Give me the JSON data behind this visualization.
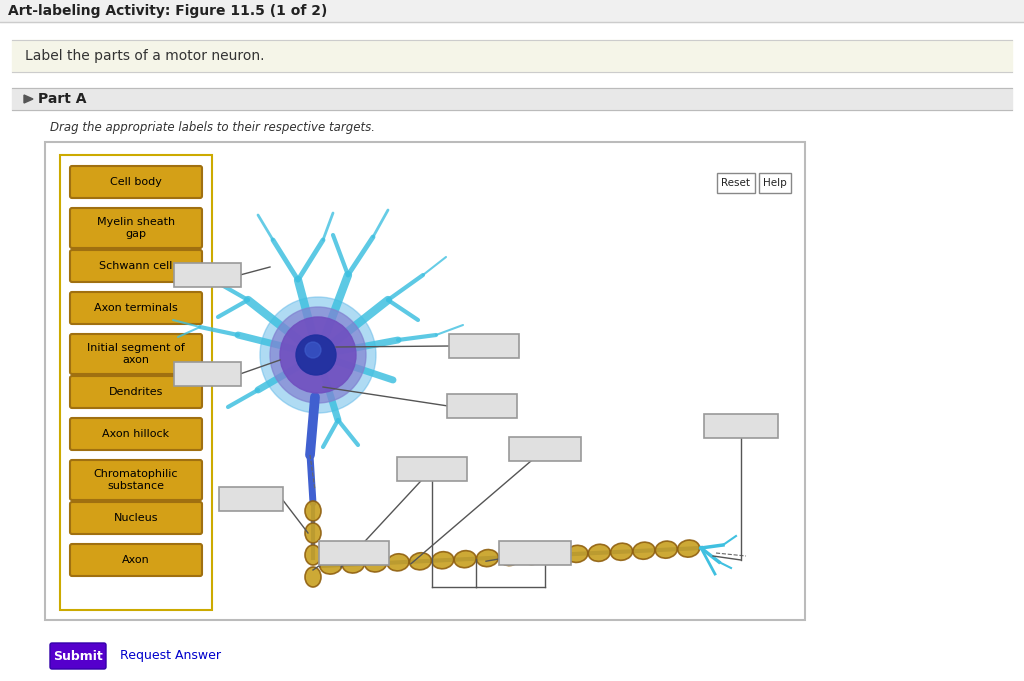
{
  "title": "Art-labeling Activity: Figure 11.5 (1 of 2)",
  "instruction": "Label the parts of a motor neuron.",
  "part_label": "Part A",
  "drag_instruction": "Drag the appropriate labels to their respective targets.",
  "page_bg": "#ffffff",
  "label_bg": "#d4a017",
  "label_border": "#a07010",
  "label_text_color": "#000000",
  "instruction_bg": "#f5f5e8",
  "submit_bg": "#5500cc",
  "submit_text": "Submit",
  "request_answer_text": "Request Answer",
  "reset_text": "Reset",
  "help_text": "Help",
  "yellow_labels": [
    "Cell body",
    "Myelin sheath\ngap",
    "Schwann cell",
    "Axon terminals",
    "Initial segment of\naxon",
    "Dendrites",
    "Axon hillock",
    "Chromatophilic\nsubstance",
    "Nucleus",
    "Axon"
  ]
}
